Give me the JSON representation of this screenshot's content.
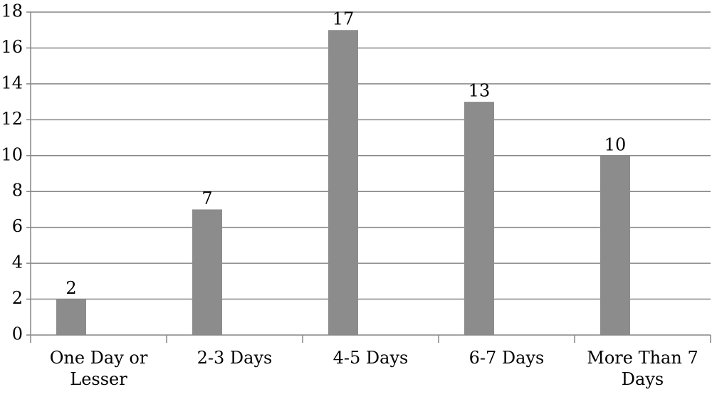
{
  "chart_data": {
    "type": "bar",
    "categories": [
      "One Day or Lesser",
      "2-3 Days",
      "4-5 Days",
      "6-7 Days",
      "More Than 7 Days"
    ],
    "values": [
      2,
      7,
      17,
      13,
      10
    ],
    "color": "#8c8c8c",
    "ylim": [
      0,
      18
    ],
    "yticks": [
      0,
      2,
      4,
      6,
      8,
      10,
      12,
      14,
      16,
      18
    ],
    "grid": true
  }
}
